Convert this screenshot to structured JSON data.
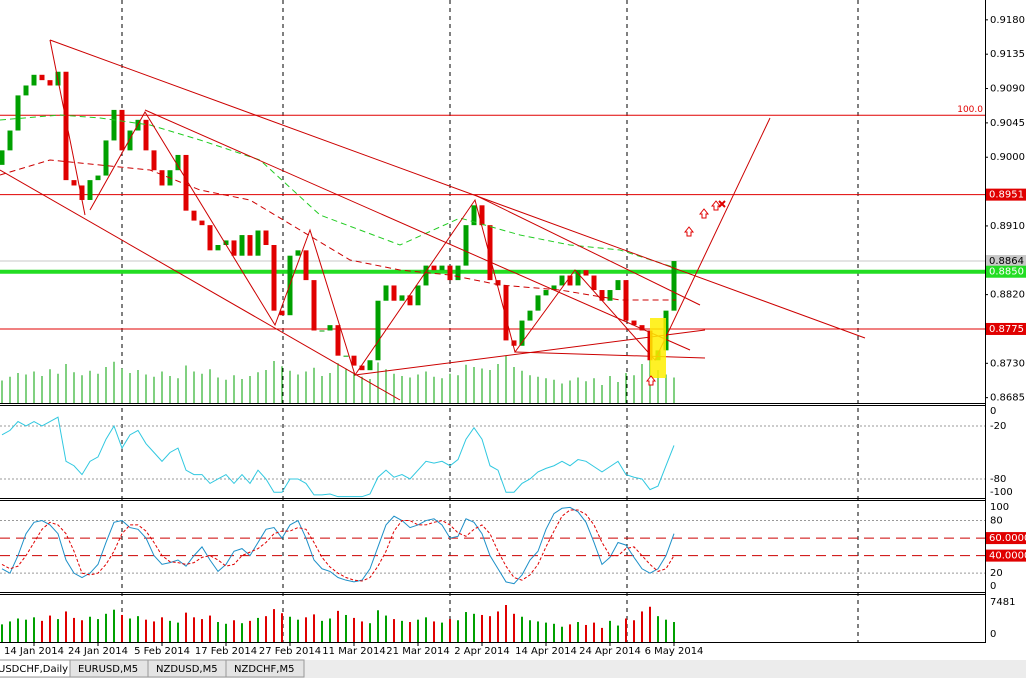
{
  "chart_data": {
    "type": "candlestick",
    "categories": [
      null,
      null,
      null,
      null,
      "14 Jan 2014",
      null,
      null,
      null,
      null,
      null,
      null,
      null,
      "24 Jan 2014",
      null,
      null,
      null,
      null,
      null,
      null,
      null,
      "5 Feb 2014",
      null,
      null,
      null,
      null,
      null,
      null,
      null,
      "17 Feb 2014",
      null,
      null,
      null,
      null,
      null,
      null,
      null,
      "27 Feb 2014",
      null,
      null,
      null,
      null,
      null,
      null,
      null,
      "11 Mar 2014",
      null,
      null,
      null,
      null,
      null,
      null,
      null,
      "21 Mar 2014",
      null,
      null,
      null,
      null,
      null,
      null,
      null,
      "2 Apr 2014",
      null,
      null,
      null,
      null,
      null,
      null,
      null,
      "14 Apr 2014",
      null,
      null,
      null,
      null,
      null,
      null,
      null,
      "24 Apr 2014",
      null,
      null,
      null,
      null,
      null,
      null,
      null,
      "6 May 2014"
    ],
    "open": [
      0.899,
      0.9009,
      0.9035,
      0.9081,
      0.9094,
      0.9108,
      0.9101,
      0.9094,
      0.9112,
      0.897,
      0.8963,
      0.8944,
      0.897,
      0.8976,
      0.9022,
      0.9062,
      0.9009,
      0.9035,
      0.9049,
      0.9009,
      0.8983,
      0.8963,
      0.8983,
      0.9003,
      0.893,
      0.8917,
      0.8911,
      0.8878,
      0.8885,
      0.8891,
      0.8871,
      0.8898,
      0.8871,
      0.8904,
      0.8885,
      0.8799,
      0.8793,
      0.8871,
      0.8878,
      0.8839,
      0.8773,
      0.8773,
      0.878,
      0.874,
      0.874,
      0.8727,
      0.8721,
      0.8734,
      0.8812,
      0.8832,
      0.8812,
      0.8819,
      0.8806,
      0.8832,
      0.8858,
      0.8852,
      0.8858,
      0.8839,
      0.8858,
      0.8911,
      0.8937,
      0.8911,
      0.8839,
      0.8832,
      0.876,
      0.8753,
      0.8786,
      0.8799,
      0.8819,
      0.8826,
      0.8832,
      0.8845,
      0.8832,
      0.8852,
      0.8845,
      0.8826,
      0.8812,
      0.8826,
      0.8839,
      0.8786,
      0.878,
      0.8773,
      0.8734,
      0.8747,
      0.8799
    ],
    "close": [
      0.9009,
      0.9035,
      0.9081,
      0.9094,
      0.9108,
      0.9101,
      0.9094,
      0.9112,
      0.897,
      0.8963,
      0.8944,
      0.897,
      0.8976,
      0.9022,
      0.9062,
      0.9009,
      0.9035,
      0.9049,
      0.9009,
      0.8983,
      0.8963,
      0.8983,
      0.9003,
      0.893,
      0.8917,
      0.8911,
      0.8878,
      0.8885,
      0.8891,
      0.8871,
      0.8898,
      0.8871,
      0.8904,
      0.8885,
      0.8799,
      0.8793,
      0.8871,
      0.8878,
      0.8839,
      0.8773,
      0.8773,
      0.878,
      0.874,
      0.874,
      0.8727,
      0.8721,
      0.8734,
      0.8812,
      0.8832,
      0.8812,
      0.8819,
      0.8806,
      0.8832,
      0.8858,
      0.8852,
      0.8858,
      0.8839,
      0.8858,
      0.8911,
      0.8937,
      0.8911,
      0.8839,
      0.8832,
      0.876,
      0.8753,
      0.8786,
      0.8799,
      0.8819,
      0.8826,
      0.8832,
      0.8845,
      0.8832,
      0.8852,
      0.8845,
      0.8826,
      0.8812,
      0.8826,
      0.8839,
      0.8786,
      0.878,
      0.8773,
      0.8734,
      0.8747,
      0.8799,
      0.8864
    ],
    "up_color": "#00a000",
    "down_color": "#e00000",
    "ylim": [
      0.8678,
      0.9206
    ],
    "yticks": [
      {
        "value": 0.918,
        "label": "0.9180"
      },
      0.9135,
      {
        "value": 0.909,
        "label": "0.9090"
      },
      0.9045,
      {
        "value": 0.9,
        "label": "0.9000"
      },
      {
        "value": 0.891,
        "label": "0.8910"
      },
      {
        "value": 0.882,
        "label": "0.8820"
      },
      {
        "value": 0.873,
        "label": "0.8730"
      },
      0.8685
    ],
    "levels": [
      {
        "value": 0.8951,
        "color": "#e00000",
        "text_color": "#ffffff",
        "width": 1
      },
      {
        "value": 0.8864,
        "color": "#c8c8c8",
        "text_color": "#000000",
        "width": 1
      },
      {
        "value": 0.885,
        "label": "0.8850",
        "color": "#22dd22",
        "text_color": "#ffffff",
        "width": 4
      },
      {
        "value": 0.8775,
        "color": "#e00000",
        "text_color": "#ffffff",
        "width": 1
      }
    ],
    "fibo": {
      "value": 0.9055,
      "label": "100.0",
      "color": "#e00000"
    },
    "volume": [
      3000,
      3500,
      4000,
      3800,
      4200,
      3600,
      4500,
      3900,
      5200,
      4100,
      3700,
      4300,
      3900,
      4800,
      5500,
      4600,
      4000,
      4400,
      3800,
      3500,
      4200,
      3600,
      3300,
      5000,
      4200,
      3900,
      4500,
      3400,
      3100,
      3700,
      3200,
      3600,
      4100,
      4400,
      5600,
      4900,
      4300,
      3800,
      4200,
      4700,
      3600,
      4000,
      5300,
      4600,
      4100,
      3500,
      3200,
      5400,
      4500,
      3900,
      3600,
      3400,
      3800,
      4200,
      3500,
      3300,
      3900,
      3700,
      5100,
      4800,
      4600,
      4400,
      5200,
      6300,
      4800,
      4300,
      3700,
      3500,
      3300,
      3100,
      2600,
      3000,
      3400,
      2900,
      3300,
      2400,
      3600,
      2800,
      4000,
      3700,
      5200,
      6000,
      4400,
      3800,
      3400
    ],
    "volume_panel": {
      "ylim": [
        0,
        8000
      ],
      "yticks": [
        7481,
        0
      ]
    },
    "wpr": {
      "color": "#30c8e0",
      "ylim": [
        -101.5,
        2.6
      ],
      "yticks": [
        0,
        -20,
        -80,
        -100
      ],
      "levels": [
        -20,
        -80
      ],
      "values": [
        -30,
        -25,
        -15,
        -20,
        -15,
        -20,
        -15,
        -10,
        -60,
        -65,
        -75,
        -60,
        -55,
        -35,
        -20,
        -45,
        -30,
        -25,
        -40,
        -50,
        -60,
        -50,
        -45,
        -70,
        -75,
        -75,
        -85,
        -80,
        -75,
        -85,
        -75,
        -85,
        -70,
        -80,
        -95,
        -95,
        -80,
        -80,
        -85,
        -98,
        -98,
        -97,
        -100,
        -100,
        -100,
        -100,
        -97,
        -78,
        -70,
        -78,
        -75,
        -80,
        -70,
        -60,
        -62,
        -60,
        -65,
        -58,
        -35,
        -22,
        -35,
        -65,
        -70,
        -95,
        -95,
        -85,
        -80,
        -72,
        -68,
        -65,
        -60,
        -65,
        -58,
        -60,
        -66,
        -72,
        -66,
        -60,
        -75,
        -78,
        -80,
        -92,
        -88,
        -65,
        -42
      ]
    },
    "stoch": {
      "main_color": "#1e90c8",
      "signal_color": "#e00000",
      "ylim": [
        -1.5,
        102.3
      ],
      "yticks": [
        100,
        80,
        20,
        0
      ],
      "grid": [
        80,
        20
      ],
      "levels": [
        {
          "value": 60,
          "label": "60.0000"
        },
        {
          "value": 40,
          "label": "40.0000"
        }
      ],
      "main": [
        25,
        20,
        40,
        65,
        78,
        80,
        75,
        65,
        35,
        20,
        15,
        20,
        30,
        55,
        78,
        80,
        72,
        70,
        60,
        40,
        30,
        32,
        35,
        28,
        40,
        50,
        35,
        22,
        30,
        45,
        48,
        40,
        55,
        70,
        72,
        60,
        75,
        80,
        60,
        35,
        25,
        22,
        15,
        12,
        10,
        12,
        25,
        50,
        75,
        85,
        80,
        72,
        75,
        80,
        82,
        75,
        60,
        62,
        82,
        78,
        65,
        40,
        25,
        10,
        8,
        18,
        35,
        45,
        70,
        88,
        94,
        95,
        90,
        78,
        55,
        30,
        38,
        55,
        52,
        38,
        25,
        20,
        25,
        40,
        65
      ],
      "signal": [
        30,
        25,
        28,
        40,
        55,
        70,
        78,
        75,
        65,
        45,
        20,
        18,
        20,
        30,
        45,
        65,
        75,
        75,
        68,
        55,
        40,
        33,
        32,
        30,
        32,
        38,
        40,
        35,
        28,
        30,
        40,
        44,
        48,
        55,
        65,
        68,
        68,
        72,
        70,
        55,
        38,
        27,
        20,
        15,
        12,
        11,
        15,
        28,
        45,
        68,
        80,
        80,
        75,
        75,
        78,
        80,
        75,
        66,
        62,
        70,
        75,
        65,
        45,
        28,
        15,
        12,
        18,
        30,
        50,
        68,
        85,
        92,
        92,
        87,
        75,
        55,
        40,
        40,
        48,
        50,
        40,
        30,
        22,
        25,
        40
      ]
    }
  },
  "tabs": [
    "USDCHF,Daily",
    "EURUSD,M5",
    "NZDUSD,M5",
    "NZDCHF,M5"
  ]
}
